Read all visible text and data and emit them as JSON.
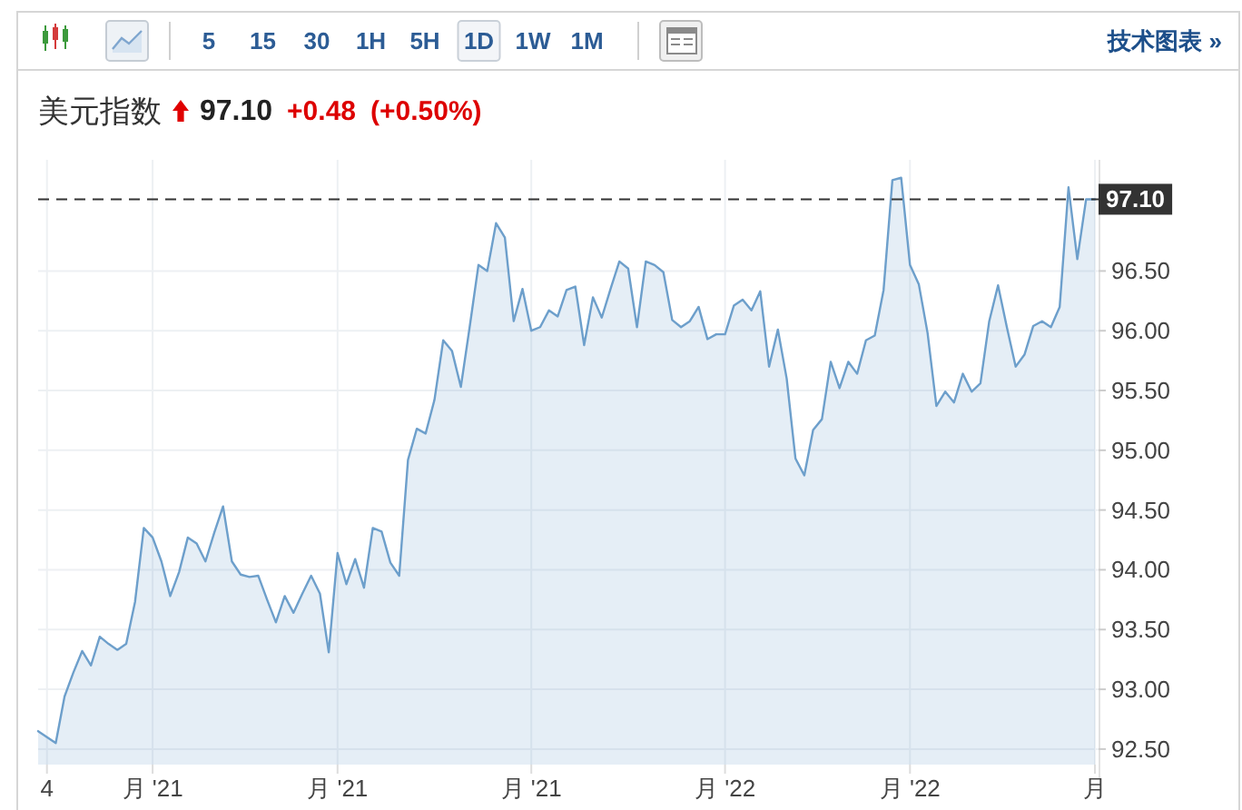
{
  "chart_data": {
    "type": "area",
    "title": "美元指数",
    "annotations": [
      "5",
      "15",
      "30",
      "1H",
      "5H",
      "1D",
      "1W",
      "1M",
      "技术图表 »",
      "97.10",
      "+0.48",
      "(+0.50%)"
    ],
    "categories": [
      null,
      "4",
      null,
      null,
      null,
      null,
      null,
      null,
      null,
      null,
      null,
      null,
      null,
      "月 '21",
      null,
      null,
      null,
      null,
      null,
      null,
      null,
      null,
      null,
      null,
      null,
      null,
      null,
      null,
      null,
      null,
      null,
      null,
      null,
      null,
      "月 '21",
      null,
      null,
      null,
      null,
      null,
      null,
      null,
      null,
      null,
      null,
      null,
      null,
      null,
      null,
      null,
      null,
      null,
      null,
      null,
      null,
      null,
      "月 '21",
      null,
      null,
      null,
      null,
      null,
      null,
      null,
      null,
      null,
      null,
      null,
      null,
      null,
      null,
      null,
      null,
      null,
      null,
      null,
      null,
      null,
      "月 '22",
      null,
      null,
      null,
      null,
      null,
      null,
      null,
      null,
      null,
      null,
      null,
      null,
      null,
      null,
      null,
      null,
      null,
      null,
      null,
      null,
      "月 '22",
      null,
      null,
      null,
      null,
      null,
      null,
      null,
      null,
      null,
      null,
      null,
      null,
      null,
      null,
      null,
      null,
      null,
      null,
      null,
      null,
      "月"
    ],
    "series": [
      {
        "color": "#6d9fcb",
        "values": [
          92.65,
          92.6,
          92.55,
          92.94,
          93.14,
          93.32,
          93.2,
          93.44,
          93.38,
          93.33,
          93.38,
          93.73,
          94.35,
          94.27,
          94.07,
          93.78,
          93.98,
          94.27,
          94.22,
          94.07,
          94.31,
          94.53,
          94.07,
          93.96,
          93.94,
          93.95,
          93.75,
          93.56,
          93.78,
          93.64,
          93.8,
          93.95,
          93.8,
          93.31,
          94.14,
          93.88,
          94.09,
          93.85,
          94.35,
          94.32,
          94.06,
          93.95,
          94.92,
          95.18,
          95.14,
          95.42,
          95.92,
          95.83,
          95.53,
          96.03,
          96.55,
          96.5,
          96.9,
          96.78,
          96.08,
          96.35,
          96.0,
          96.03,
          96.17,
          96.12,
          96.34,
          96.37,
          95.88,
          96.28,
          96.11,
          96.35,
          96.58,
          96.52,
          96.03,
          96.58,
          96.55,
          96.49,
          96.09,
          96.03,
          96.08,
          96.2,
          95.93,
          95.97,
          95.97,
          96.21,
          96.26,
          96.17,
          96.33,
          95.7,
          96.01,
          95.6,
          94.93,
          94.79,
          95.17,
          95.26,
          95.74,
          95.52,
          95.74,
          95.64,
          95.92,
          95.96,
          96.34,
          97.26,
          97.28,
          96.55,
          96.39,
          95.98,
          95.37,
          95.49,
          95.4,
          95.64,
          95.49,
          95.56,
          96.08,
          96.38,
          96.03,
          95.7,
          95.8,
          96.04,
          96.08,
          96.03,
          96.2,
          97.2,
          96.6,
          97.1,
          97.1
        ]
      }
    ],
    "ylim": [
      92.37,
      97.43
    ],
    "yticks": [
      {
        "value": 92.5,
        "label": "92.50"
      },
      {
        "value": 93,
        "label": "93.00"
      },
      {
        "value": 93.5,
        "label": "93.50"
      },
      {
        "value": 94,
        "label": "94.00"
      },
      {
        "value": 94.5,
        "label": "94.50"
      },
      {
        "value": 95,
        "label": "95.00"
      },
      {
        "value": 95.5,
        "label": "95.50"
      },
      {
        "value": 96,
        "label": "96.00"
      },
      {
        "value": 96.5,
        "label": "96.50"
      }
    ],
    "grid": true,
    "ref_lines": [
      {
        "axis": "y",
        "value": 97.1,
        "label": "97.10",
        "color": "#333333",
        "line_style": "dashed"
      }
    ]
  }
}
